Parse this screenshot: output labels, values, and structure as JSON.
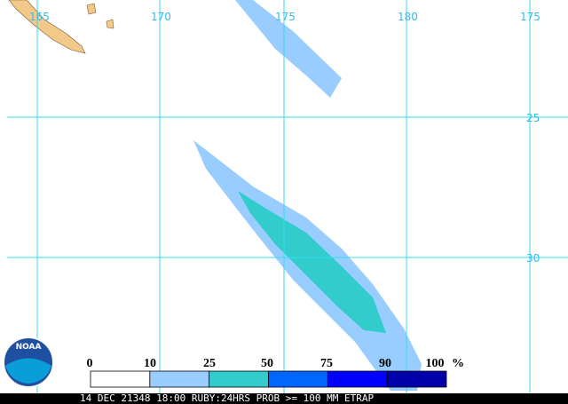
{
  "map": {
    "lon_labels": [
      "165",
      "170",
      "175",
      "180",
      "175"
    ],
    "lat_labels": [
      "25",
      "30"
    ],
    "logo": "NOAA",
    "legend": {
      "labels": [
        "0",
        "10",
        "25",
        "50",
        "75",
        "90",
        "100"
      ],
      "unit": "%",
      "colors": [
        "#ffffff",
        "#99ccff",
        "#33cccc",
        "#0066ff",
        "#0000ff",
        "#0000aa"
      ]
    },
    "footer": "14 DEC 21348 18:00 RUBY:24HRS PROB >= 100 MM ETRAP"
  }
}
